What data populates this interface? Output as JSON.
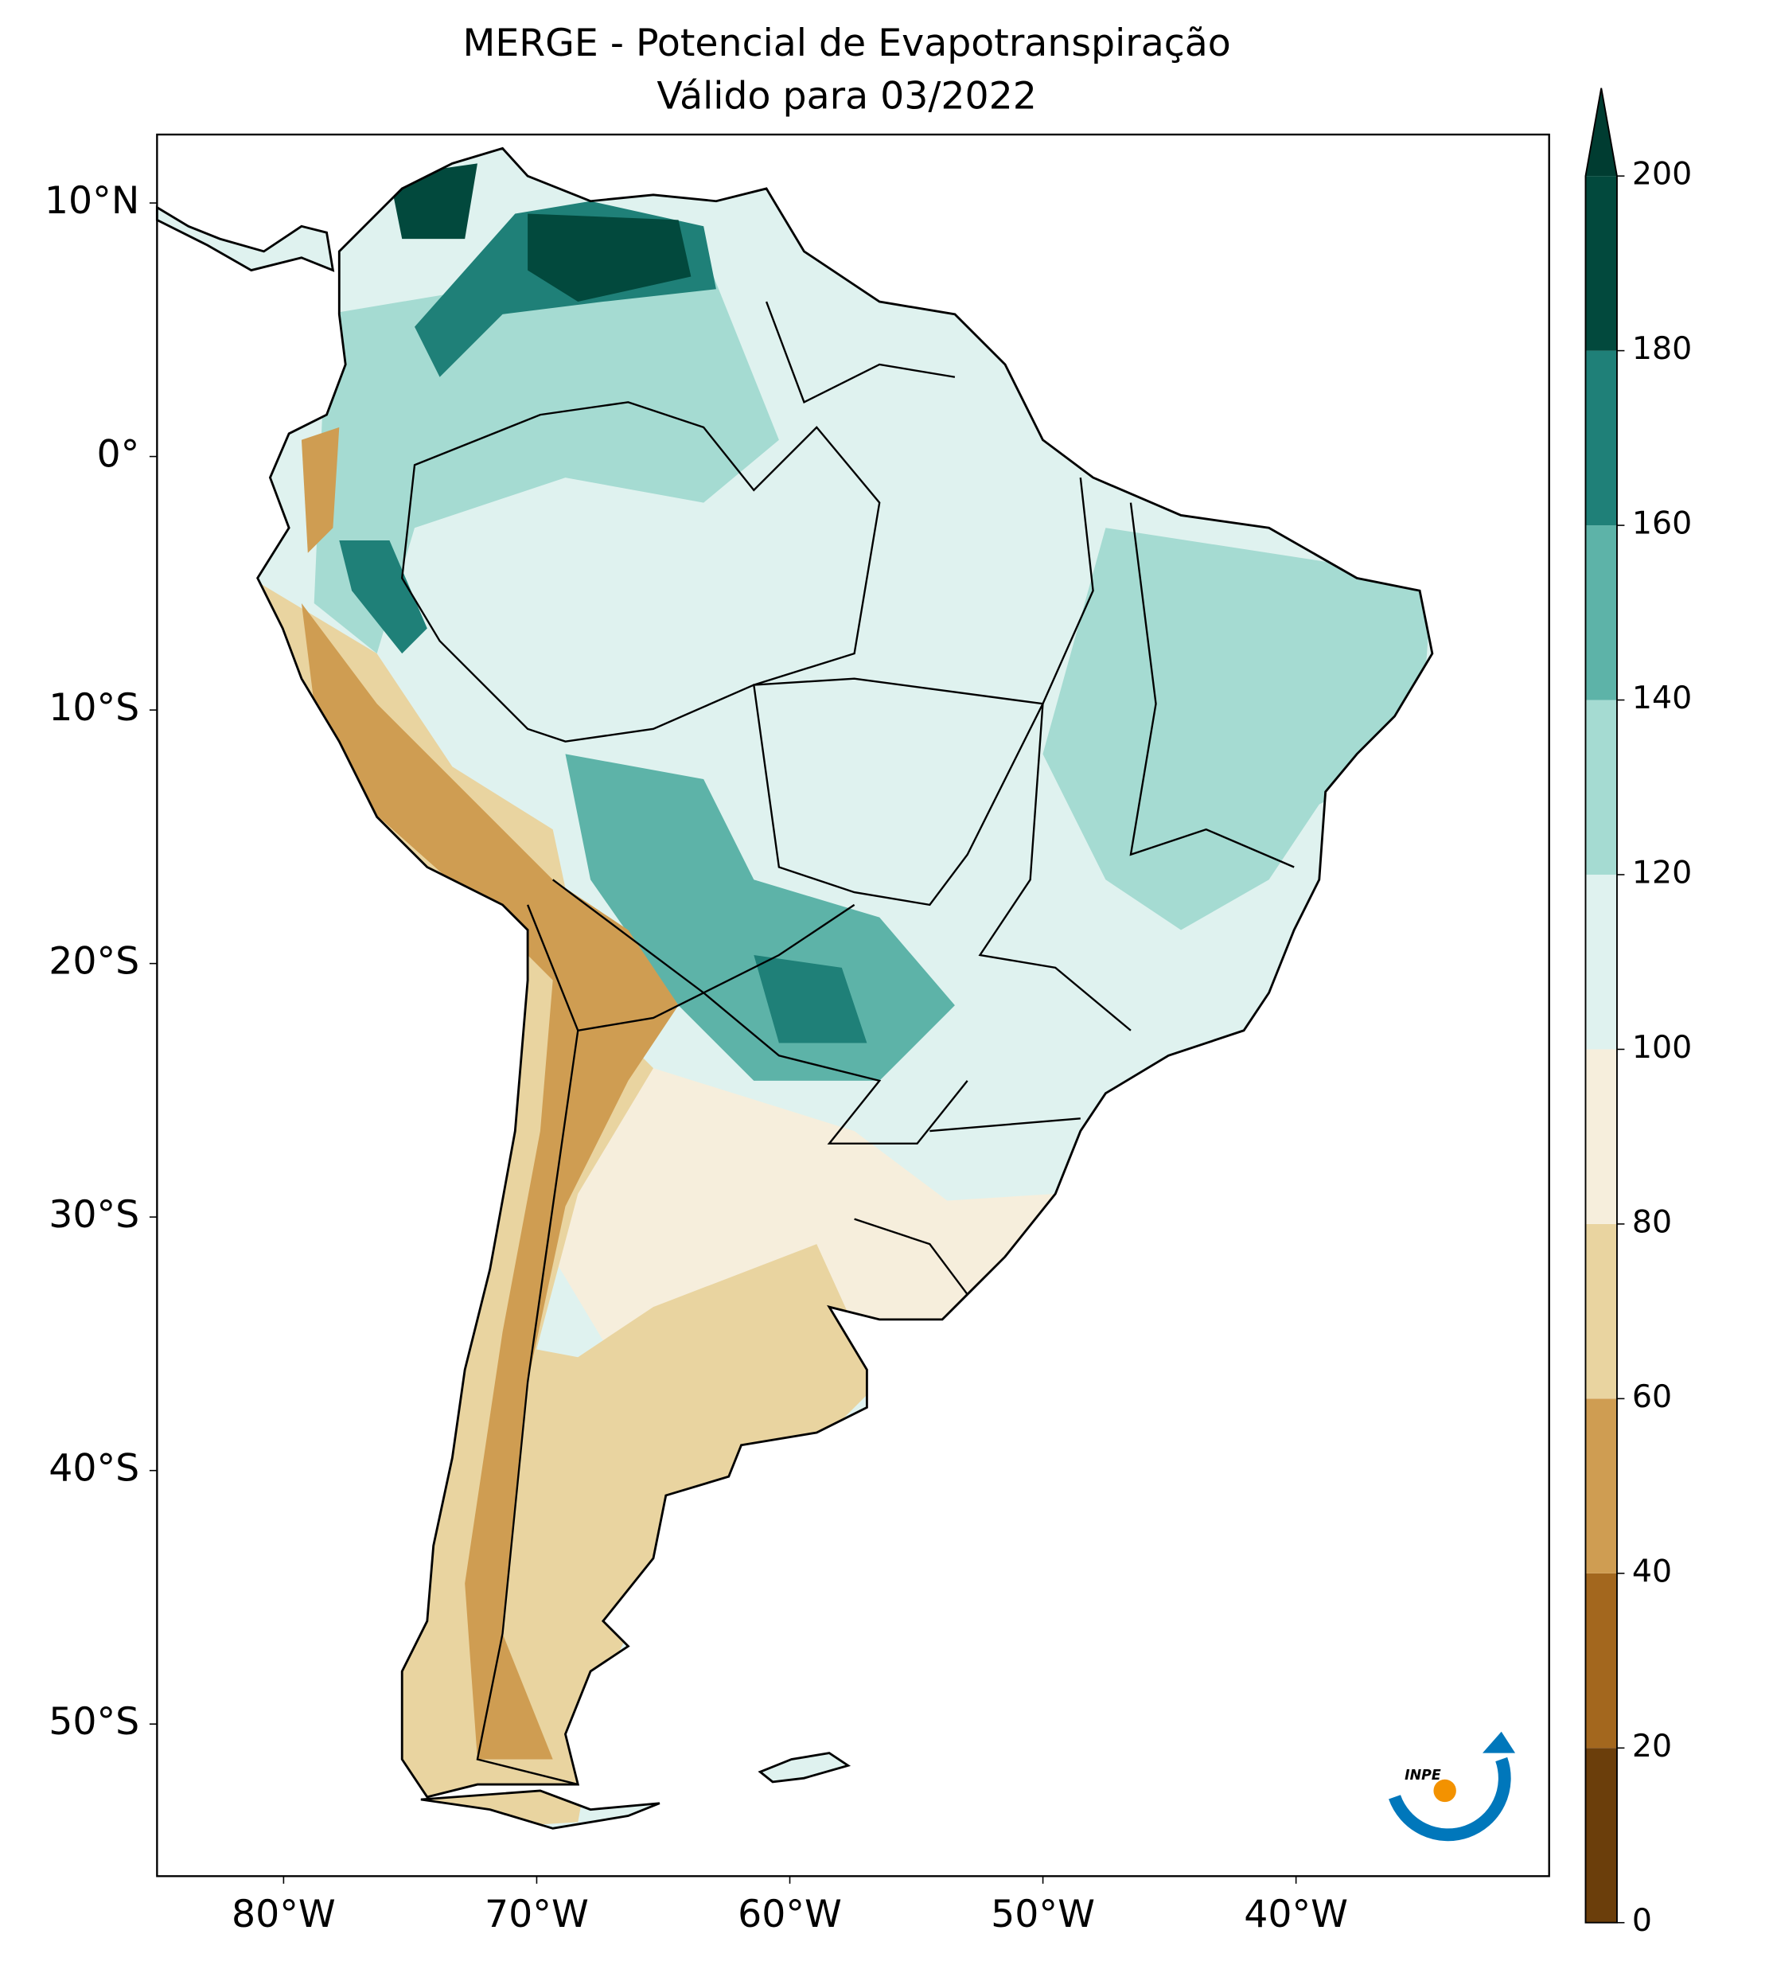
{
  "chart_data": {
    "type": "contour_map",
    "title": "MERGE - Potencial de Evapotranspiração",
    "subtitle": "Válido para 03/2022",
    "xlim": [
      -85,
      -30
    ],
    "ylim": [
      -56,
      12.7
    ],
    "xticks": [
      {
        "value": -80,
        "label": "80°W"
      },
      {
        "value": -70,
        "label": "70°W"
      },
      {
        "value": -60,
        "label": "60°W"
      },
      {
        "value": -50,
        "label": "50°W"
      },
      {
        "value": -40,
        "label": "40°W"
      }
    ],
    "yticks": [
      {
        "value": 10,
        "label": "10°N"
      },
      {
        "value": 0,
        "label": "0°"
      },
      {
        "value": -10,
        "label": "10°S"
      },
      {
        "value": -20,
        "label": "20°S"
      },
      {
        "value": -30,
        "label": "30°S"
      },
      {
        "value": -40,
        "label": "40°S"
      },
      {
        "value": -50,
        "label": "50°S"
      }
    ],
    "colorbar": {
      "levels": [
        0,
        20,
        40,
        60,
        80,
        100,
        120,
        140,
        160,
        180,
        200
      ],
      "colors": [
        "#6b3e0b",
        "#a3671e",
        "#cf9d52",
        "#e9d4a0",
        "#f6eedc",
        "#dff2ef",
        "#a5dbd2",
        "#5db3a8",
        "#1f8078",
        "#02493d"
      ],
      "extend_color": "#003c31"
    },
    "logo": "INPE"
  }
}
